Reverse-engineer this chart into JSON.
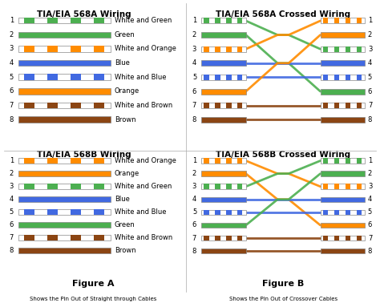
{
  "bg_color": "#ffffff",
  "border_color": "#cccccc",
  "title_fontsize": 7.5,
  "label_fontsize": 6.0,
  "pin_fontsize": 6.0,
  "568A": [
    {
      "label": "White and Green",
      "color": "#4caf50",
      "solid": false
    },
    {
      "label": "Green",
      "color": "#4caf50",
      "solid": true
    },
    {
      "label": "White and Orange",
      "color": "#ff8c00",
      "solid": false
    },
    {
      "label": "Blue",
      "color": "#4169e1",
      "solid": true
    },
    {
      "label": "White and Blue",
      "color": "#4169e1",
      "solid": false
    },
    {
      "label": "Orange",
      "color": "#ff8c00",
      "solid": true
    },
    {
      "label": "White and Brown",
      "color": "#8b4513",
      "solid": false
    },
    {
      "label": "Brown",
      "color": "#8b4513",
      "solid": true
    }
  ],
  "568B": [
    {
      "label": "White and Orange",
      "color": "#ff8c00",
      "solid": false
    },
    {
      "label": "Orange",
      "color": "#ff8c00",
      "solid": true
    },
    {
      "label": "White and Green",
      "color": "#4caf50",
      "solid": false
    },
    {
      "label": "Blue",
      "color": "#4169e1",
      "solid": true
    },
    {
      "label": "White and Blue",
      "color": "#4169e1",
      "solid": false
    },
    {
      "label": "Green",
      "color": "#4caf50",
      "solid": true
    },
    {
      "label": "White and Brown",
      "color": "#8b4513",
      "solid": false
    },
    {
      "label": "Brown",
      "color": "#8b4513",
      "solid": true
    }
  ],
  "crossover_map": [
    2,
    5,
    0,
    3,
    4,
    1,
    6,
    7
  ],
  "figure_a_caption": "Figure A",
  "figure_b_caption": "Figure B",
  "bottom_a": "Shows the Pin Out of Straight through Cables",
  "bottom_b": "Shows the Pin Out of Crossover Cables"
}
